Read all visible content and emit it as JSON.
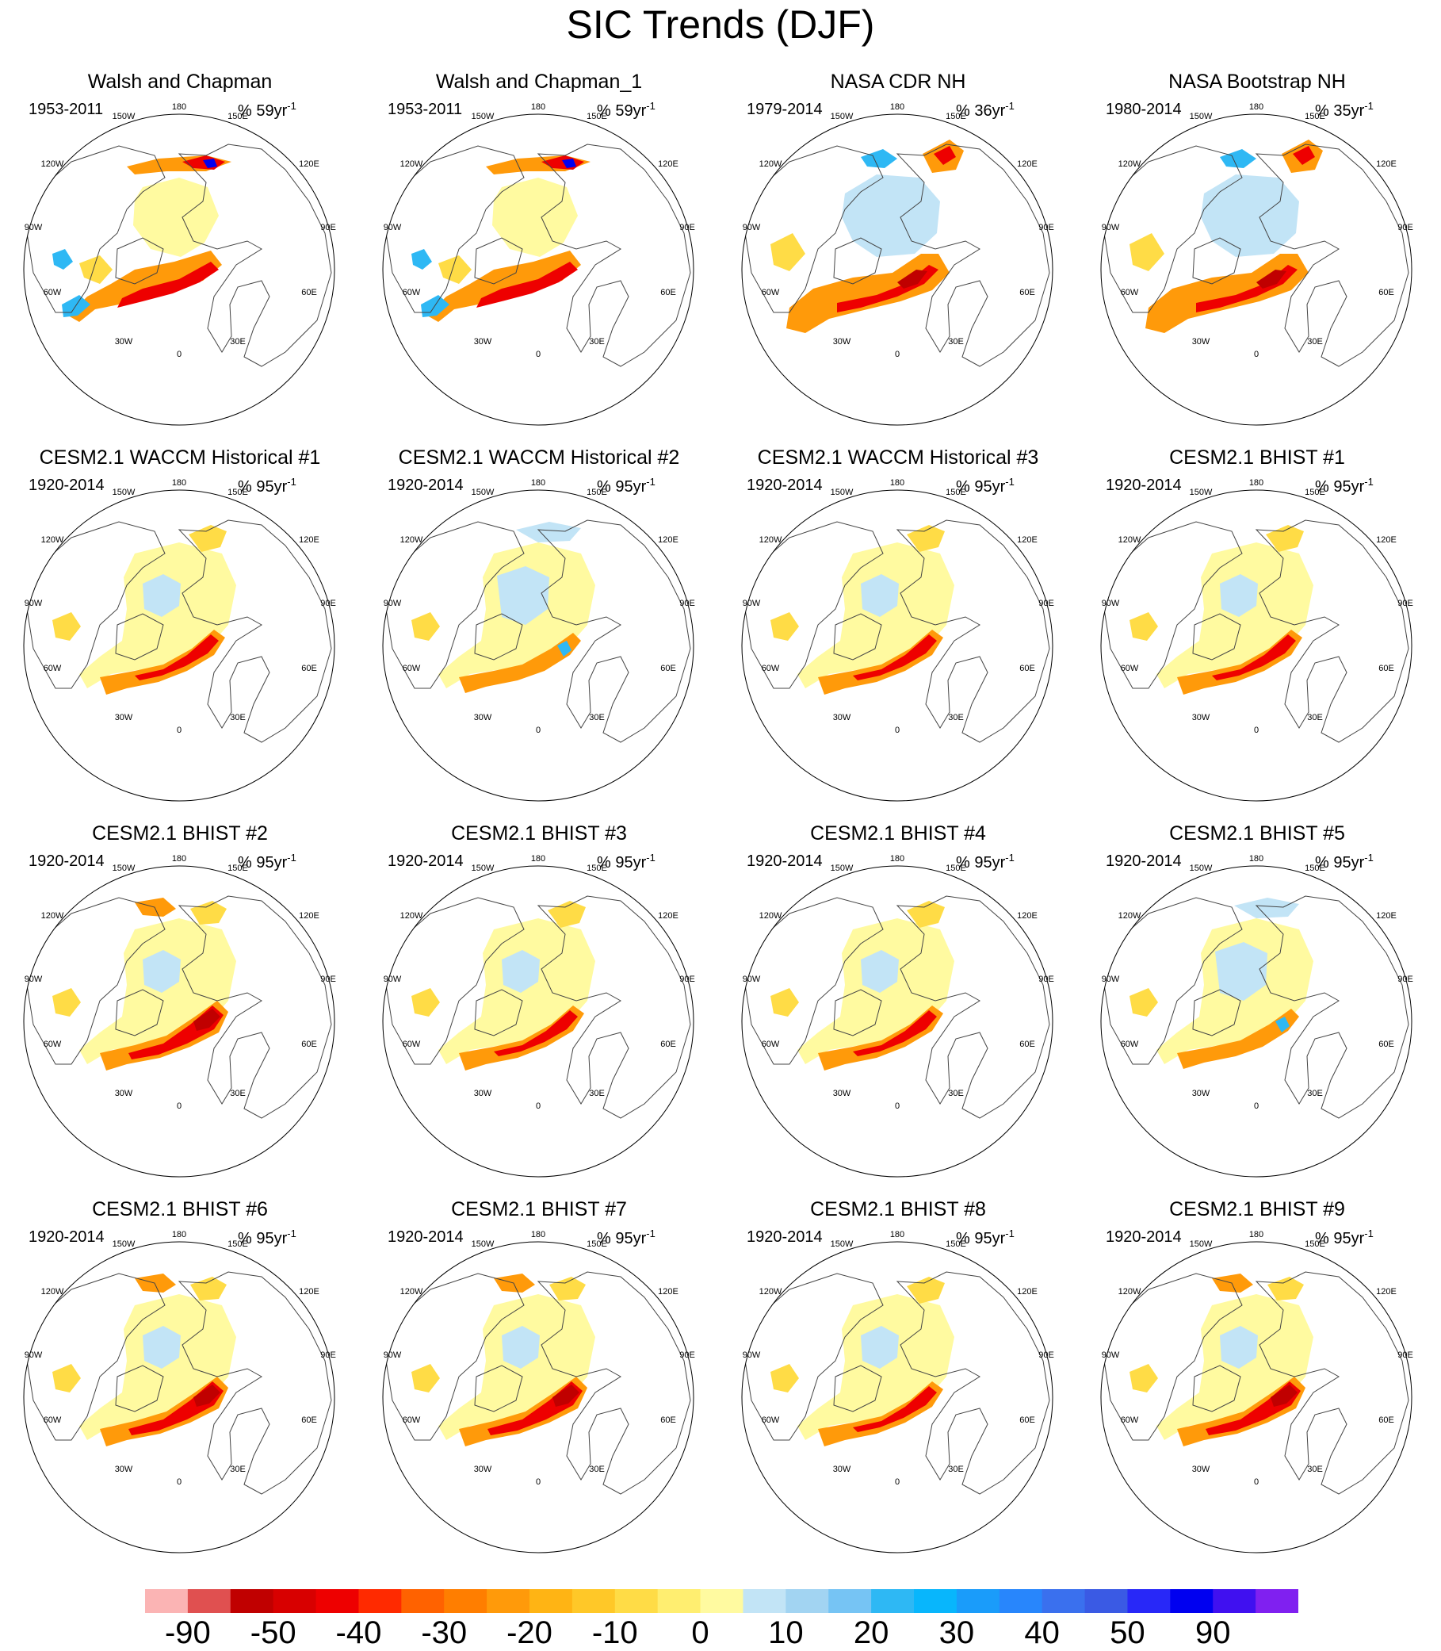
{
  "title": "SIC Trends (DJF)",
  "unit_suffix": "yr",
  "unit_exponent": "-1",
  "lon_labels": [
    "180",
    "150W",
    "150E",
    "120W",
    "120E",
    "90W",
    "90E",
    "60W",
    "60E",
    "30W",
    "30E",
    "0"
  ],
  "panels": [
    {
      "title": "Walsh and Chapman",
      "period": "1953-2011",
      "pct": "% 59",
      "style": "obs_wc"
    },
    {
      "title": "Walsh and Chapman_1",
      "period": "1953-2011",
      "pct": "% 59",
      "style": "obs_wc"
    },
    {
      "title": "NASA CDR NH",
      "period": "1979-2014",
      "pct": "% 36",
      "style": "obs_nasa"
    },
    {
      "title": "NASA Bootstrap NH",
      "period": "1980-2014",
      "pct": "% 35",
      "style": "obs_nasa"
    },
    {
      "title": "CESM2.1 WACCM Historical #1",
      "period": "1920-2014",
      "pct": "% 95",
      "style": "model"
    },
    {
      "title": "CESM2.1 WACCM Historical #2",
      "period": "1920-2014",
      "pct": "% 95",
      "style": "model_b"
    },
    {
      "title": "CESM2.1 WACCM Historical #3",
      "period": "1920-2014",
      "pct": "% 95",
      "style": "model"
    },
    {
      "title": "CESM2.1 BHIST #1",
      "period": "1920-2014",
      "pct": "% 95",
      "style": "model"
    },
    {
      "title": "CESM2.1 BHIST #2",
      "period": "1920-2014",
      "pct": "% 95",
      "style": "model_strong"
    },
    {
      "title": "CESM2.1 BHIST #3",
      "period": "1920-2014",
      "pct": "% 95",
      "style": "model"
    },
    {
      "title": "CESM2.1 BHIST #4",
      "period": "1920-2014",
      "pct": "% 95",
      "style": "model"
    },
    {
      "title": "CESM2.1 BHIST #5",
      "period": "1920-2014",
      "pct": "% 95",
      "style": "model_b"
    },
    {
      "title": "CESM2.1 BHIST #6",
      "period": "1920-2014",
      "pct": "% 95",
      "style": "model_strong"
    },
    {
      "title": "CESM2.1 BHIST #7",
      "period": "1920-2014",
      "pct": "% 95",
      "style": "model_strong"
    },
    {
      "title": "CESM2.1 BHIST #8",
      "period": "1920-2014",
      "pct": "% 95",
      "style": "model"
    },
    {
      "title": "CESM2.1 BHIST #9",
      "period": "1920-2014",
      "pct": "% 95",
      "style": "model_strong"
    }
  ],
  "colorbar": {
    "colors": [
      "#fbb4b4",
      "#e05050",
      "#c00000",
      "#d80000",
      "#ee0000",
      "#ff2a00",
      "#ff6200",
      "#ff7e00",
      "#ff9a0a",
      "#ffb414",
      "#ffc828",
      "#ffdc46",
      "#ffee70",
      "#fffaa0",
      "#c2e4f6",
      "#a2d4f2",
      "#76c4f4",
      "#2eb8f4",
      "#08b6fc",
      "#1a9cfa",
      "#2886fc",
      "#3a70ee",
      "#3a5ae4",
      "#2828f8",
      "#0000f0",
      "#4010f0",
      "#8020f0"
    ],
    "labels": [
      "-90",
      "-50",
      "-40",
      "-30",
      "-20",
      "-10",
      "0",
      "10",
      "20",
      "30",
      "40",
      "50",
      "90"
    ]
  },
  "colors": {
    "land": "#bebebe",
    "ocean": "#ffffff",
    "pale_yellow": "#fffaa0",
    "yellow": "#ffdc46",
    "orange": "#ff9a0a",
    "red": "#ee0000",
    "dark_red": "#c00000",
    "light_blue": "#c2e4f6",
    "blue": "#2eb8f4",
    "dark_blue": "#0000f0"
  }
}
